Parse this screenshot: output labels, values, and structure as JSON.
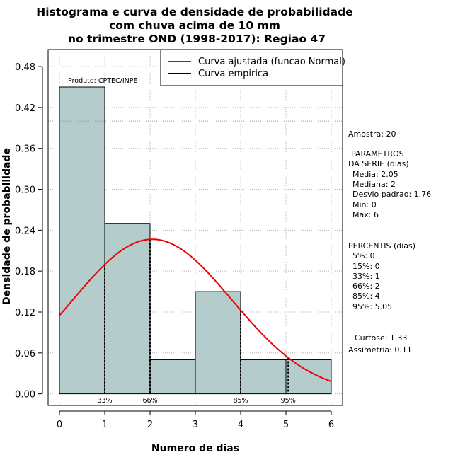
{
  "chart_data": {
    "type": "bar",
    "title_lines": [
      "Histograma e curva de densidade de probabilidade",
      "com chuva acima de 10 mm",
      "no trimestre OND (1998-2017): Regiao 47"
    ],
    "xlabel": "Numero de dias",
    "ylabel": "Densidade de probabilidade",
    "xlim": [
      -0.25,
      6.25
    ],
    "ylim": [
      -0.017,
      0.505
    ],
    "x_ticks": [
      "0",
      "1",
      "2",
      "3",
      "4",
      "5",
      "6"
    ],
    "y_ticks": [
      "0.00",
      "0.06",
      "0.12",
      "0.18",
      "0.24",
      "0.30",
      "0.36",
      "0.42",
      "0.48"
    ],
    "grid": true,
    "bins": [
      {
        "from": 0,
        "to": 1,
        "value": 0.45
      },
      {
        "from": 1,
        "to": 2,
        "value": 0.25
      },
      {
        "from": 2,
        "to": 3,
        "value": 0.05
      },
      {
        "from": 3,
        "to": 4,
        "value": 0.15
      },
      {
        "from": 4,
        "to": 5,
        "value": 0.05
      },
      {
        "from": 5,
        "to": 6,
        "value": 0.05
      }
    ],
    "ref_line_y": 0.4,
    "fitted_curve": {
      "name": "Curva ajustada (funcao Normal)",
      "mean": 2.05,
      "sd": 1.76,
      "color": "#ee0000"
    },
    "empirical_legend": {
      "name": "Curva empirica",
      "color": "#000000"
    },
    "percentile_lines": [
      {
        "x": 1,
        "label": "33%"
      },
      {
        "x": 2,
        "label": "66%"
      },
      {
        "x": 4,
        "label": "85%"
      },
      {
        "x": 5.05,
        "label": "95%"
      }
    ],
    "product_label": "Produto: CPTEC/INPE",
    "bar_color": "#b4cccc",
    "legend_position": "top-right"
  },
  "stats": {
    "amostra": "Amostra: 20",
    "param_title_1": "PARAMETROS",
    "param_title_2": "DA SERIE (dias)",
    "media": "Media: 2.05",
    "mediana": "Mediana: 2",
    "desvio": "Desvio padrao: 1.76",
    "min": "Min: 0",
    "max": "Max: 6",
    "perc_title": "PERCENTIS (dias)",
    "p5": "5%: 0",
    "p15": "15%: 0",
    "p33": "33%: 1",
    "p66": "66%: 2",
    "p85": "85%: 4",
    "p95": "95%: 5.05",
    "curtose": "Curtose: 1.33",
    "assimetria": "Assimetria: 0.11"
  }
}
